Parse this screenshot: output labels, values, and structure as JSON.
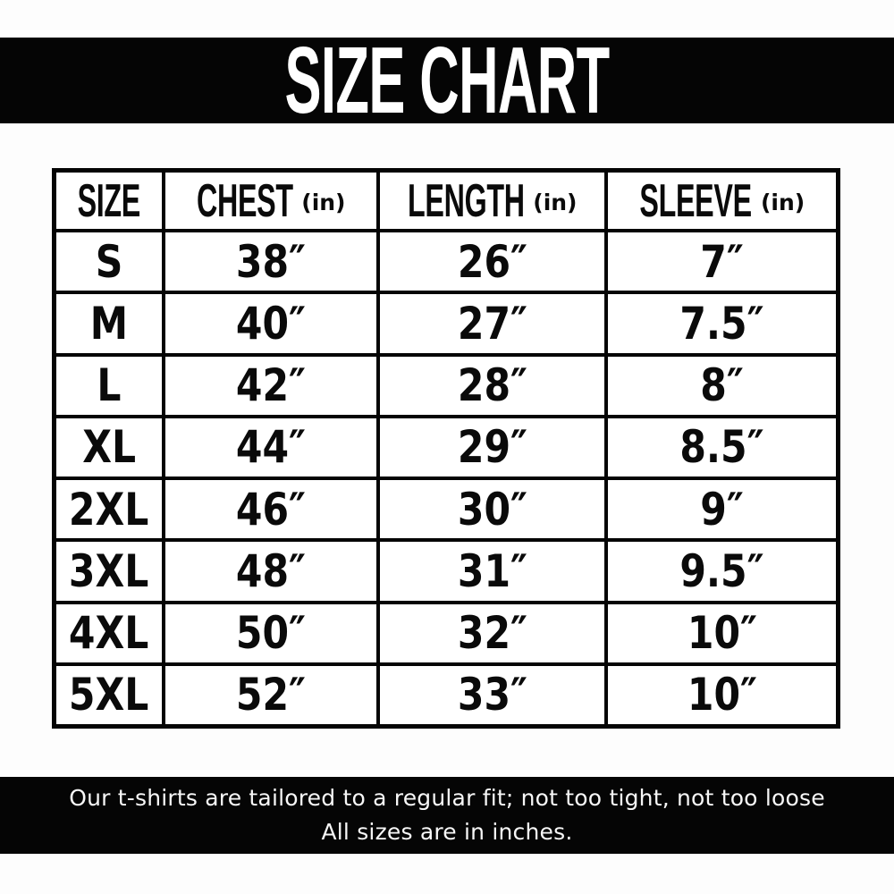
{
  "title": "SIZE CHART",
  "table": {
    "headers": [
      {
        "label": "SIZE",
        "unit": ""
      },
      {
        "label": "CHEST",
        "unit": "(in)"
      },
      {
        "label": "LENGTH",
        "unit": "(in)"
      },
      {
        "label": "SLEEVE",
        "unit": "(in)"
      }
    ],
    "rows": [
      {
        "size": "S",
        "chest": "38″",
        "length": "26″",
        "sleeve": "7″"
      },
      {
        "size": "M",
        "chest": "40″",
        "length": "27″",
        "sleeve": "7.5″"
      },
      {
        "size": "L",
        "chest": "42″",
        "length": "28″",
        "sleeve": "8″"
      },
      {
        "size": "XL",
        "chest": "44″",
        "length": "29″",
        "sleeve": "8.5″"
      },
      {
        "size": "2XL",
        "chest": "46″",
        "length": "30″",
        "sleeve": "9″"
      },
      {
        "size": "3XL",
        "chest": "48″",
        "length": "31″",
        "sleeve": "9.5″"
      },
      {
        "size": "4XL",
        "chest": "50″",
        "length": "32″",
        "sleeve": "10″"
      },
      {
        "size": "5XL",
        "chest": "52″",
        "length": "33″",
        "sleeve": "10″"
      }
    ]
  },
  "footer": {
    "line1": "Our t-shirts are tailored to a regular fit; not too tight, not too loose",
    "line2": "All sizes are in inches."
  },
  "colors": {
    "band": "#050505",
    "text": "#0a0a0a",
    "background": "#ffffff"
  }
}
